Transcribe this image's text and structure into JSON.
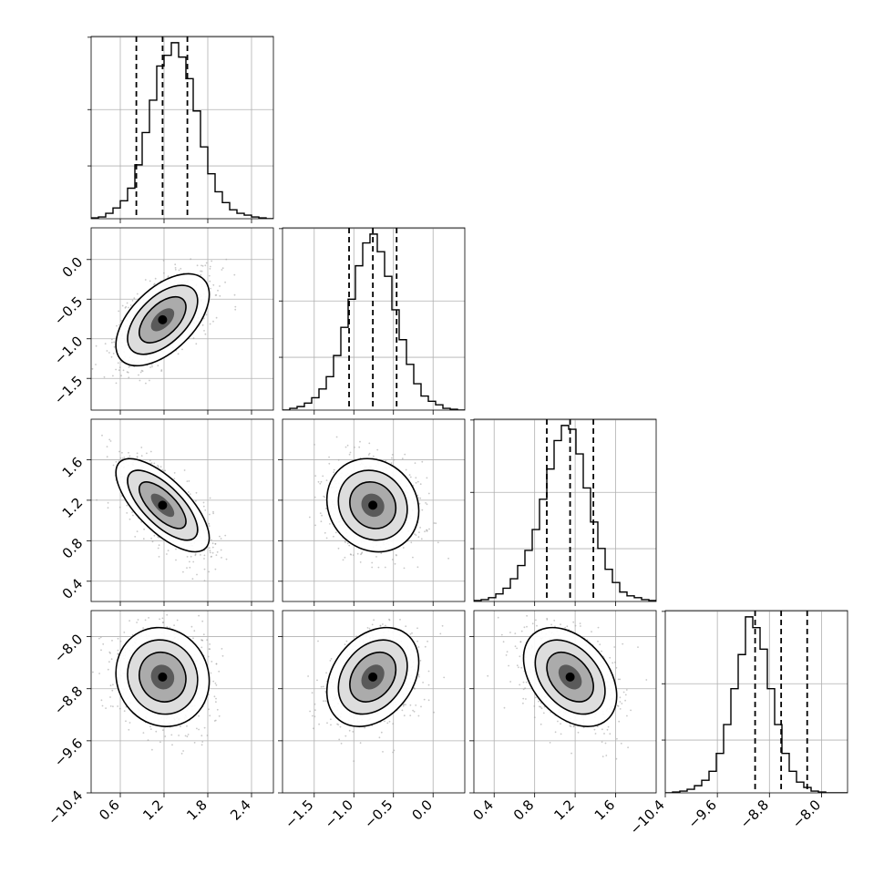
{
  "chart_data": {
    "type": "corner",
    "title": "",
    "dimensions": 4,
    "grid": true,
    "parameters": [
      {
        "median": 1.18,
        "q16": 0.82,
        "q84": 1.52,
        "range": [
          0.2,
          2.7
        ],
        "ticks": [
          0.6,
          1.2,
          1.8,
          2.4
        ],
        "tick_labels": [
          "0.6",
          "1.2",
          "1.8",
          "2.4"
        ],
        "hist_counts": [
          0.5,
          1,
          3,
          6,
          10,
          17,
          30,
          48,
          66,
          85,
          91,
          98,
          90,
          78,
          60,
          40,
          25,
          15,
          9,
          5,
          3,
          2,
          1,
          0.5,
          0
        ]
      },
      {
        "median": -0.76,
        "q16": -1.06,
        "q84": -0.46,
        "range": [
          -1.9,
          0.4
        ],
        "ticks": [
          -1.5,
          -1.0,
          -0.5,
          0.0
        ],
        "tick_labels": [
          "−1.5",
          "−1.0",
          "−0.5",
          "0.0"
        ],
        "hist_counts": [
          0,
          1,
          2,
          4,
          7,
          12,
          19,
          31,
          47,
          63,
          82,
          95,
          100,
          90,
          76,
          57,
          40,
          26,
          15,
          8,
          5,
          3,
          1,
          0.5,
          0
        ]
      },
      {
        "median": 1.15,
        "q16": 0.92,
        "q84": 1.38,
        "range": [
          0.2,
          2.0
        ],
        "ticks": [
          0.4,
          0.8,
          1.2,
          1.6
        ],
        "tick_labels": [
          "0.4",
          "0.8",
          "1.2",
          "1.6"
        ],
        "hist_counts": [
          0.5,
          1,
          2,
          4,
          7,
          12,
          19,
          27,
          38,
          54,
          70,
          85,
          93,
          91,
          78,
          60,
          42,
          28,
          17,
          10,
          5,
          3,
          2,
          1,
          0.5
        ]
      },
      {
        "median": -8.62,
        "q16": -9.02,
        "q84": -8.22,
        "range": [
          -10.4,
          -7.6
        ],
        "ticks": [
          -10.4,
          -9.6,
          -8.8,
          -8.0
        ],
        "tick_labels": [
          "−10.4",
          "−9.6",
          "−8.8",
          "−8.0"
        ],
        "hist_counts": [
          0,
          0.5,
          1,
          2,
          4,
          7,
          12,
          22,
          38,
          58,
          77,
          98,
          92,
          80,
          58,
          38,
          22,
          12,
          6,
          3,
          1,
          0.5,
          0,
          0,
          0
        ]
      }
    ],
    "hist_y_ticks": [
      30,
      62
    ],
    "pairs": [
      {
        "row": 1,
        "col": 0,
        "mean_x": 1.18,
        "mean_y": -0.76,
        "sd_x": 0.32,
        "sd_y": 0.29,
        "rho": 0.55
      },
      {
        "row": 2,
        "col": 0,
        "mean_x": 1.18,
        "mean_y": 1.15,
        "sd_x": 0.32,
        "sd_y": 0.23,
        "rho": -0.7
      },
      {
        "row": 2,
        "col": 1,
        "mean_x": -0.76,
        "mean_y": 1.15,
        "sd_x": 0.29,
        "sd_y": 0.23,
        "rho": -0.12
      },
      {
        "row": 3,
        "col": 0,
        "mean_x": 1.18,
        "mean_y": -8.62,
        "sd_x": 0.32,
        "sd_y": 0.38,
        "rho": -0.08
      },
      {
        "row": 3,
        "col": 1,
        "mean_x": -0.76,
        "mean_y": -8.62,
        "sd_x": 0.29,
        "sd_y": 0.38,
        "rho": 0.3
      },
      {
        "row": 3,
        "col": 2,
        "mean_x": 1.15,
        "mean_y": -8.62,
        "sd_x": 0.23,
        "sd_y": 0.38,
        "rho": -0.38
      }
    ],
    "colors": {
      "line": "#000000",
      "points": "#9a9a9a",
      "grid": "#b0b0b0"
    }
  }
}
